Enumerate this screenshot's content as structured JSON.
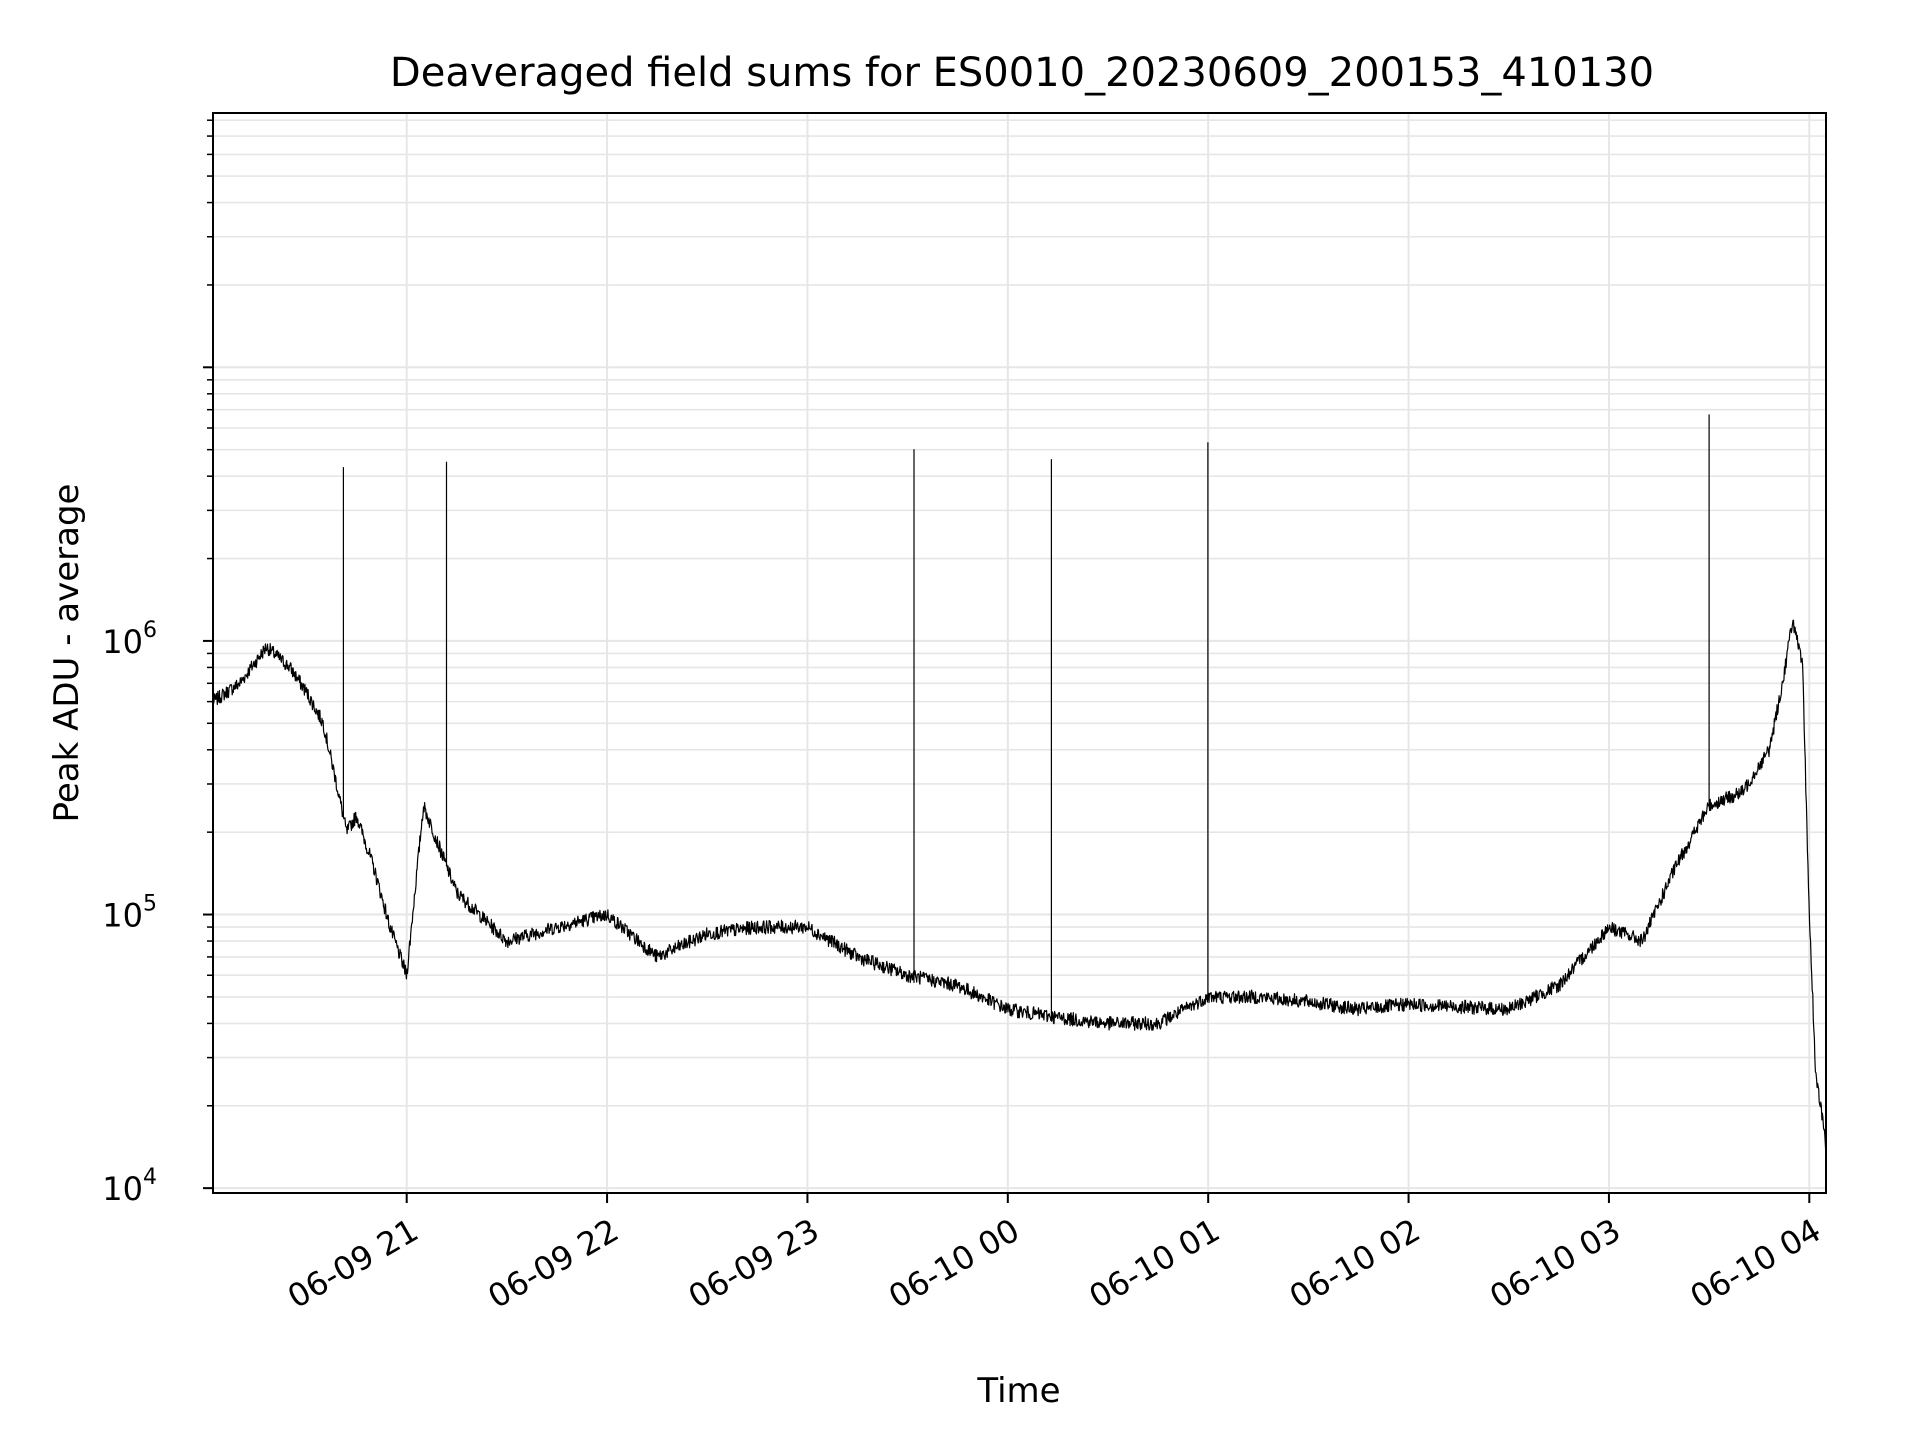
{
  "chart_data": {
    "type": "line",
    "title": "Deaveraged field sums for ES0010_20230609_200153_410130",
    "xlabel": "Time",
    "ylabel": "Peak ADU - average",
    "yscale": "log",
    "ylim": [
      9600,
      85000000
    ],
    "xlim": [
      "2023-06-09 20:02",
      "2023-06-10 04:05"
    ],
    "grid": true,
    "line_color": "#000000",
    "grid_color": "#e6e6e6",
    "x_ticks": [
      {
        "label": "06-09 21",
        "t": "2023-06-09 21:00"
      },
      {
        "label": "06-09 22",
        "t": "2023-06-09 22:00"
      },
      {
        "label": "06-09 23",
        "t": "2023-06-09 23:00"
      },
      {
        "label": "06-10 00",
        "t": "2023-06-10 00:00"
      },
      {
        "label": "06-10 01",
        "t": "2023-06-10 01:00"
      },
      {
        "label": "06-10 02",
        "t": "2023-06-10 02:00"
      },
      {
        "label": "06-10 03",
        "t": "2023-06-10 03:00"
      },
      {
        "label": "06-10 04",
        "t": "2023-06-10 04:00"
      }
    ],
    "y_ticks": [
      {
        "base": "10",
        "exp": "4",
        "value": 10000
      },
      {
        "base": "10",
        "exp": "5",
        "value": 100000
      },
      {
        "base": "10",
        "exp": "6",
        "value": 1000000
      }
    ],
    "series": [
      {
        "x": [
          "2023-06-09 20:02",
          "2023-06-09 20:10",
          "2023-06-09 20:18",
          "2023-06-09 20:25",
          "2023-06-09 20:30",
          "2023-06-09 20:35",
          "2023-06-09 20:39",
          "2023-06-09 20:42",
          "2023-06-09 20:45",
          "2023-06-09 20:50",
          "2023-06-09 20:55",
          "2023-06-09 21:00",
          "2023-06-09 21:05",
          "2023-06-09 21:15",
          "2023-06-09 21:30",
          "2023-06-09 21:45",
          "2023-06-09 22:00",
          "2023-06-09 22:15",
          "2023-06-09 22:30",
          "2023-06-09 22:45",
          "2023-06-09 23:00",
          "2023-06-09 23:15",
          "2023-06-09 23:30",
          "2023-06-09 23:45",
          "2023-06-10 00:00",
          "2023-06-10 00:15",
          "2023-06-10 00:30",
          "2023-06-10 00:45",
          "2023-06-10 01:00",
          "2023-06-10 01:15",
          "2023-06-10 01:30",
          "2023-06-10 01:45",
          "2023-06-10 02:00",
          "2023-06-10 02:15",
          "2023-06-10 02:30",
          "2023-06-10 02:45",
          "2023-06-10 03:00",
          "2023-06-10 03:10",
          "2023-06-10 03:20",
          "2023-06-10 03:30",
          "2023-06-10 03:40",
          "2023-06-10 03:48",
          "2023-06-10 03:52",
          "2023-06-10 03:55",
          "2023-06-10 03:58",
          "2023-06-10 04:00",
          "2023-06-10 04:02",
          "2023-06-10 04:04",
          "2023-06-10 04:05"
        ],
        "y": [
          600000,
          700000,
          950000,
          800000,
          650000,
          500000,
          300000,
          200000,
          230000,
          150000,
          90000,
          60000,
          250000,
          120000,
          80000,
          90000,
          100000,
          70000,
          85000,
          90000,
          90000,
          70000,
          60000,
          55000,
          45000,
          42000,
          40000,
          40000,
          50000,
          50000,
          48000,
          45000,
          47000,
          46000,
          45000,
          55000,
          90000,
          80000,
          150000,
          250000,
          280000,
          400000,
          700000,
          1200000,
          800000,
          100000,
          25000,
          18000,
          14000
        ],
        "spikes": [
          {
            "t": "2023-06-09 20:41",
            "y": 4300000
          },
          {
            "t": "2023-06-09 21:12",
            "y": 4500000
          },
          {
            "t": "2023-06-09 23:32",
            "y": 5000000
          },
          {
            "t": "2023-06-10 00:13",
            "y": 4600000
          },
          {
            "t": "2023-06-10 01:00",
            "y": 5300000
          },
          {
            "t": "2023-06-10 03:30",
            "y": 6700000
          }
        ]
      }
    ]
  }
}
